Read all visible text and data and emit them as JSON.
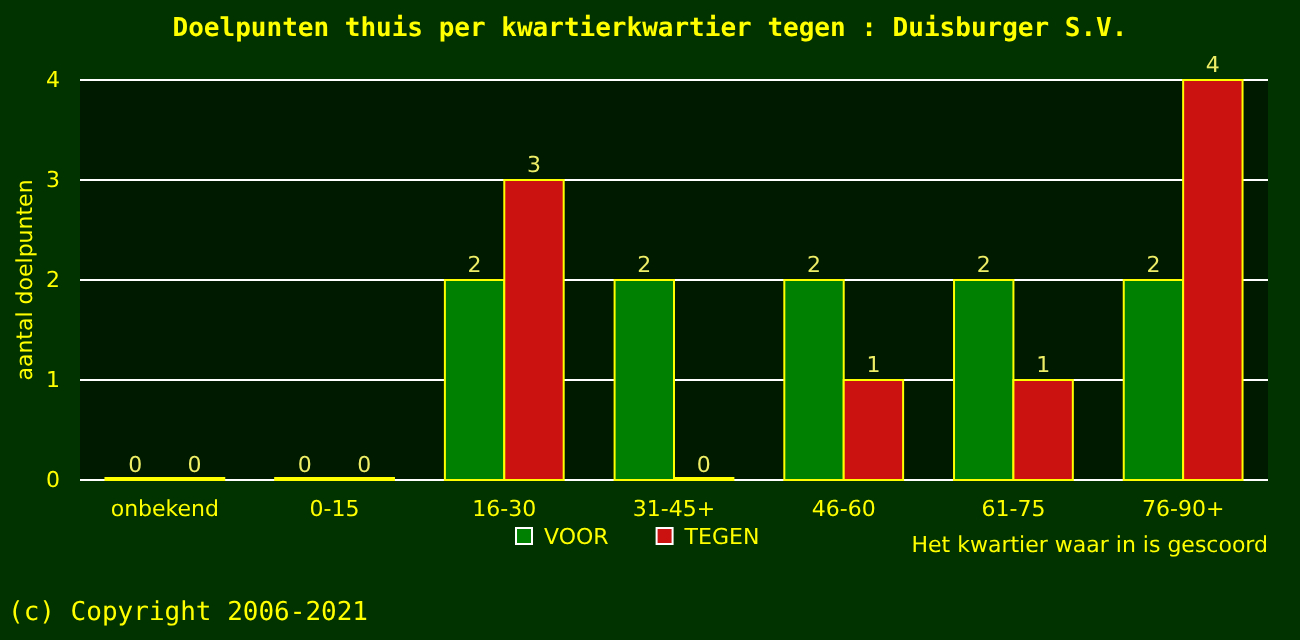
{
  "chart_data": {
    "type": "bar",
    "title": "Doelpunten thuis per kwartierkwartier tegen : Duisburger S.V.",
    "xlabel": "Het kwartier waar in is gescoord",
    "ylabel": "aantal doelpunten",
    "categories": [
      "onbekend",
      "0-15",
      "16-30",
      "31-45+",
      "46-60",
      "61-75",
      "76-90+"
    ],
    "series": [
      {
        "name": "VOOR",
        "color": "#008000",
        "values": [
          0,
          0,
          2,
          2,
          2,
          2,
          2
        ]
      },
      {
        "name": "TEGEN",
        "color": "#cc1111",
        "values": [
          0,
          0,
          3,
          0,
          1,
          1,
          4
        ]
      }
    ],
    "ylim": [
      0,
      4
    ],
    "yticks": [
      0,
      1,
      2,
      3,
      4
    ],
    "grid": "y",
    "legend": "bottom",
    "data_labels": true,
    "annotations": [
      "(c) Copyright 2006-2021"
    ]
  }
}
